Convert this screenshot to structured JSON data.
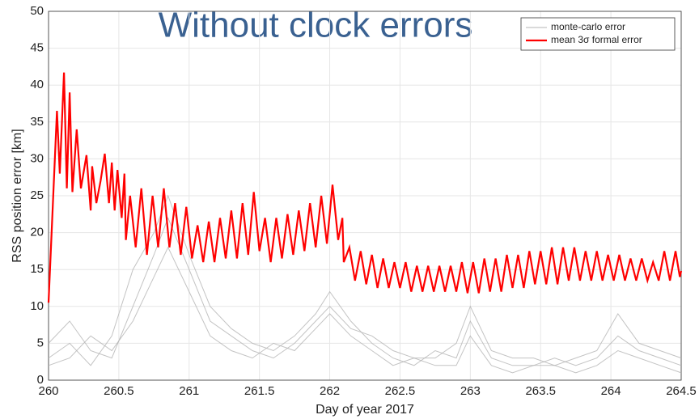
{
  "chart_data": {
    "type": "line",
    "title": "Without clock errors",
    "xlabel": "Day of year 2017",
    "ylabel": "RSS position error [km]",
    "xlim": [
      260,
      264.5
    ],
    "xticks": [
      260,
      260.5,
      261,
      261.5,
      262,
      262.5,
      263,
      263.5,
      264,
      264.5
    ],
    "ylim": [
      0,
      50
    ],
    "yticks": [
      0,
      5,
      10,
      15,
      20,
      25,
      30,
      35,
      40,
      45,
      50
    ],
    "grid": true,
    "legend": "upper right",
    "series": [
      {
        "name": "monte-carlo error",
        "color": "#b4b4b4",
        "x": [
          260,
          260.15,
          260.3,
          260.45,
          260.6,
          260.75,
          260.85,
          261,
          261.15,
          261.3,
          261.45,
          261.6,
          261.75,
          261.9,
          262,
          262.15,
          262.3,
          262.45,
          262.6,
          262.75,
          262.9,
          263,
          263.15,
          263.3,
          263.45,
          263.6,
          263.75,
          263.9,
          264.05,
          264.2,
          264.35,
          264.5
        ],
        "values": [
          3,
          5,
          2,
          6,
          15,
          20,
          25,
          17,
          10,
          7,
          5,
          4,
          6,
          9,
          12,
          8,
          5,
          3,
          2,
          4,
          3,
          8,
          3,
          2,
          2,
          3,
          2,
          3,
          6,
          4,
          3,
          2
        ]
      },
      {
        "color": "#b4b4b4",
        "x": [
          260,
          260.15,
          260.3,
          260.45,
          260.6,
          260.75,
          260.85,
          261,
          261.15,
          261.3,
          261.45,
          261.6,
          261.75,
          261.9,
          262,
          262.15,
          262.3,
          262.45,
          262.6,
          262.75,
          262.9,
          263,
          263.15,
          263.3,
          263.45,
          263.6,
          263.75,
          263.9,
          264.05,
          264.2,
          264.35,
          264.5
        ],
        "values": [
          5,
          8,
          4,
          3,
          10,
          17,
          22,
          15,
          8,
          6,
          4,
          3,
          5,
          8,
          10,
          7,
          6,
          4,
          3,
          3,
          5,
          10,
          4,
          3,
          3,
          2,
          3,
          4,
          9,
          5,
          4,
          3
        ]
      },
      {
        "color": "#b4b4b4",
        "x": [
          260,
          260.15,
          260.3,
          260.45,
          260.6,
          260.75,
          260.85,
          261,
          261.15,
          261.3,
          261.45,
          261.6,
          261.75,
          261.9,
          262,
          262.15,
          262.3,
          262.45,
          262.6,
          262.75,
          262.9,
          263,
          263.15,
          263.3,
          263.45,
          263.6,
          263.75,
          263.9,
          264.05,
          264.2,
          264.35,
          264.5
        ],
        "values": [
          2,
          3,
          6,
          4,
          8,
          14,
          18,
          12,
          6,
          4,
          3,
          5,
          4,
          7,
          9,
          6,
          4,
          2,
          3,
          2,
          2,
          6,
          2,
          1,
          2,
          2,
          1,
          2,
          4,
          3,
          2,
          1
        ]
      },
      {
        "name": "mean 3σ formal error",
        "color": "#ff0000",
        "x": [
          260,
          260.03,
          260.06,
          260.08,
          260.11,
          260.13,
          260.15,
          260.17,
          260.2,
          260.23,
          260.27,
          260.3,
          260.31,
          260.34,
          260.37,
          260.4,
          260.43,
          260.45,
          260.47,
          260.49,
          260.52,
          260.54,
          260.55,
          260.58,
          260.62,
          260.66,
          260.7,
          260.74,
          260.78,
          260.82,
          260.86,
          260.9,
          260.94,
          260.98,
          261.02,
          261.06,
          261.1,
          261.14,
          261.18,
          261.22,
          261.26,
          261.3,
          261.34,
          261.38,
          261.42,
          261.46,
          261.5,
          261.54,
          261.58,
          261.62,
          261.66,
          261.7,
          261.74,
          261.78,
          261.82,
          261.86,
          261.9,
          261.94,
          261.98,
          262.02,
          262.06,
          262.09,
          262.1,
          262.14,
          262.18,
          262.22,
          262.26,
          262.3,
          262.34,
          262.38,
          262.42,
          262.46,
          262.5,
          262.54,
          262.58,
          262.62,
          262.66,
          262.7,
          262.74,
          262.78,
          262.82,
          262.86,
          262.9,
          262.94,
          262.98,
          263.02,
          263.06,
          263.1,
          263.14,
          263.18,
          263.22,
          263.26,
          263.3,
          263.34,
          263.38,
          263.42,
          263.46,
          263.5,
          263.54,
          263.58,
          263.62,
          263.66,
          263.7,
          263.74,
          263.78,
          263.82,
          263.86,
          263.9,
          263.94,
          263.98,
          264.02,
          264.06,
          264.1,
          264.14,
          264.18,
          264.22,
          264.26,
          264.3,
          264.34,
          264.38,
          264.42,
          264.46,
          264.49,
          264.5
        ],
        "values": [
          10.5,
          23.5,
          36.5,
          28,
          41.7,
          26,
          39,
          25.5,
          34,
          26,
          30.5,
          23,
          29,
          24,
          27,
          30.7,
          24,
          29.5,
          23,
          28.5,
          22,
          28,
          19,
          25,
          18,
          26,
          17,
          25,
          18,
          26,
          18,
          24,
          17,
          23.5,
          16.5,
          21,
          16,
          21.5,
          16,
          22,
          16.5,
          23,
          16.5,
          24,
          17,
          25.5,
          17.5,
          22,
          16,
          22,
          16.5,
          22.5,
          17,
          23,
          17.5,
          24,
          18,
          25,
          18.5,
          26.5,
          19,
          22,
          16,
          18,
          13.5,
          17.5,
          13,
          17,
          12.5,
          16.5,
          12.5,
          16,
          12.5,
          16,
          12,
          15.5,
          12,
          15.5,
          12,
          15.5,
          12,
          15.5,
          12,
          16,
          11.8,
          16,
          11.8,
          16.5,
          12,
          16.5,
          12,
          17,
          12.5,
          17,
          12.5,
          17.5,
          13,
          17.5,
          13,
          18,
          13,
          18,
          13.5,
          18,
          13.5,
          17.5,
          13.5,
          17.5,
          13.5,
          17,
          13.5,
          17,
          13.5,
          16.5,
          13.5,
          16.5,
          13.5,
          16,
          13.5,
          17.5,
          13.5,
          17.5,
          14,
          14.8
        ]
      }
    ]
  }
}
